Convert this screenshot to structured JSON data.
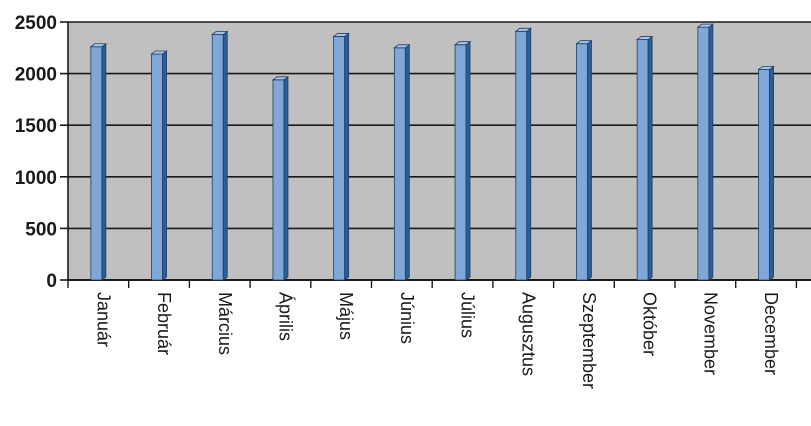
{
  "chart_data": {
    "type": "bar",
    "categories": [
      "Január",
      "Február",
      "Március",
      "Április",
      "Május",
      "Június",
      "Július",
      "Augusztus",
      "Szeptember",
      "Október",
      "November",
      "December"
    ],
    "values": [
      2260,
      2190,
      2380,
      1940,
      2360,
      2250,
      2280,
      2410,
      2290,
      2330,
      2450,
      2040
    ],
    "title": "",
    "xlabel": "",
    "ylabel": "",
    "ylim": [
      0,
      2500
    ],
    "yticks": [
      0,
      500,
      1000,
      1500,
      2000,
      2500
    ],
    "grid": true,
    "colors": {
      "bar_front": "#7fa8d8",
      "bar_side": "#2c5d93",
      "bar_top": "#a9c6ea",
      "plot_bg": "#c0c0c0",
      "grid": "#1a1a1a"
    }
  }
}
